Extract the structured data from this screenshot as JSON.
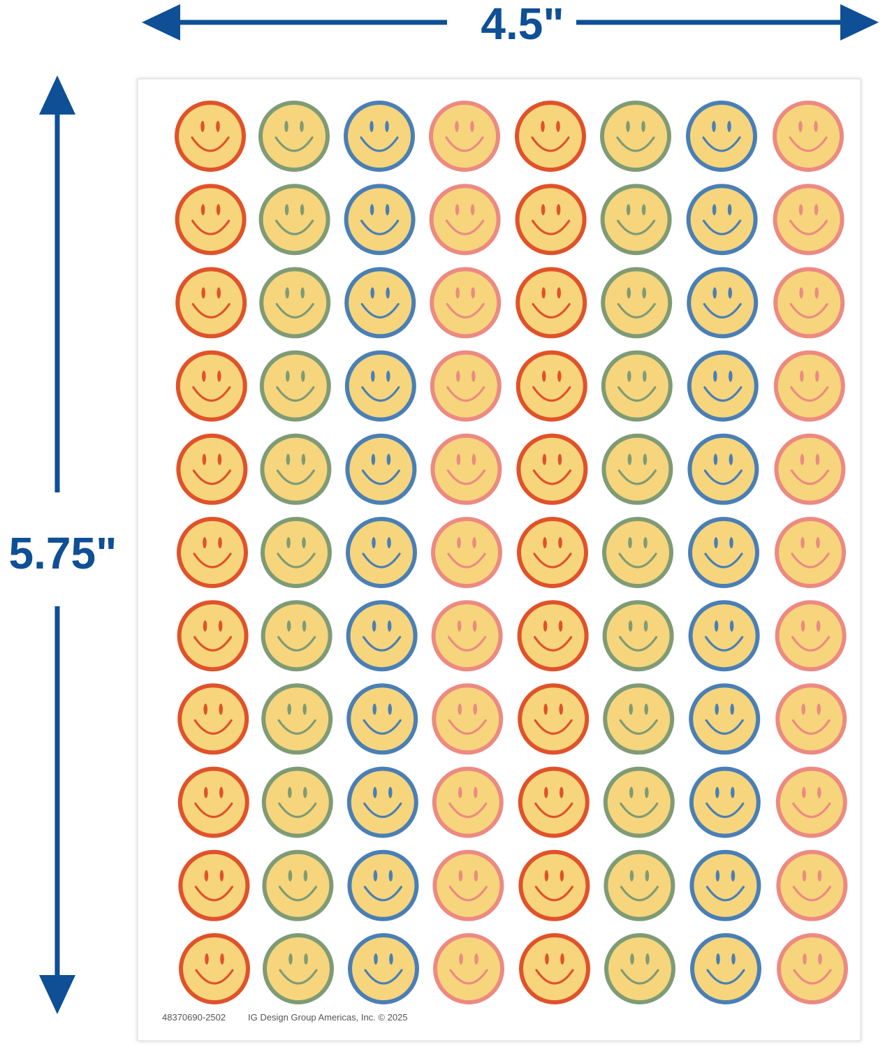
{
  "dimensions": {
    "width": "4.5\"",
    "height": "5.75\""
  },
  "footer": {
    "code": "48370690-2502",
    "copyright": "IG Design Group Americas, Inc. © 2025"
  }
}
